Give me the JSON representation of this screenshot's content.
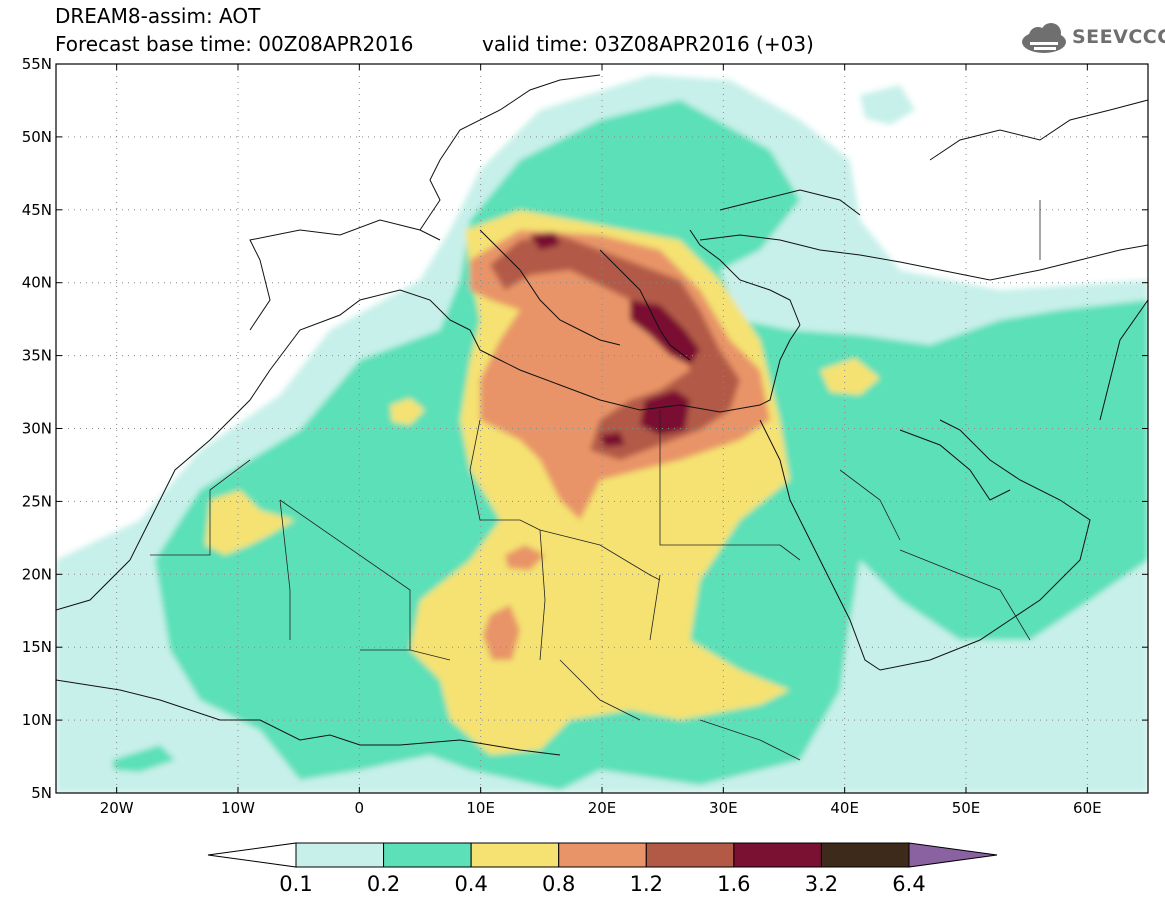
{
  "title": {
    "line1": "DREAM8-assim: AOT",
    "base": "Forecast base time: 00Z08APR2016",
    "valid": "valid time: 03Z08APR2016 (+03)"
  },
  "logo": {
    "text": "SEEVCCC",
    "icon": "cloud-icon"
  },
  "map": {
    "lon_range": [
      -25,
      65
    ],
    "lat_range": [
      5,
      55
    ],
    "lon_ticks": [
      {
        "value": -20,
        "label": "20W"
      },
      {
        "value": -10,
        "label": "10W"
      },
      {
        "value": 0,
        "label": "0"
      },
      {
        "value": 10,
        "label": "10E"
      },
      {
        "value": 20,
        "label": "20E"
      },
      {
        "value": 30,
        "label": "30E"
      },
      {
        "value": 40,
        "label": "40E"
      },
      {
        "value": 50,
        "label": "50E"
      },
      {
        "value": 60,
        "label": "60E"
      }
    ],
    "lat_ticks": [
      {
        "value": 55,
        "label": "55N"
      },
      {
        "value": 50,
        "label": "50N"
      },
      {
        "value": 45,
        "label": "45N"
      },
      {
        "value": 40,
        "label": "40N"
      },
      {
        "value": 35,
        "label": "35N"
      },
      {
        "value": 30,
        "label": "30N"
      },
      {
        "value": 25,
        "label": "25N"
      },
      {
        "value": 20,
        "label": "20N"
      },
      {
        "value": 15,
        "label": "15N"
      },
      {
        "value": 10,
        "label": "10N"
      },
      {
        "value": 5,
        "label": "5N"
      }
    ],
    "grid": "dotted"
  },
  "colorbar": {
    "labels": [
      "0.1",
      "0.2",
      "0.4",
      "0.8",
      "1.2",
      "1.6",
      "3.2",
      "6.4"
    ],
    "colors": [
      "#ffffff",
      "#c7f0ea",
      "#5ce0b8",
      "#f5e272",
      "#e89468",
      "#b25a46",
      "#7a1032",
      "#3e2a1a",
      "#8a62a2"
    ]
  }
}
